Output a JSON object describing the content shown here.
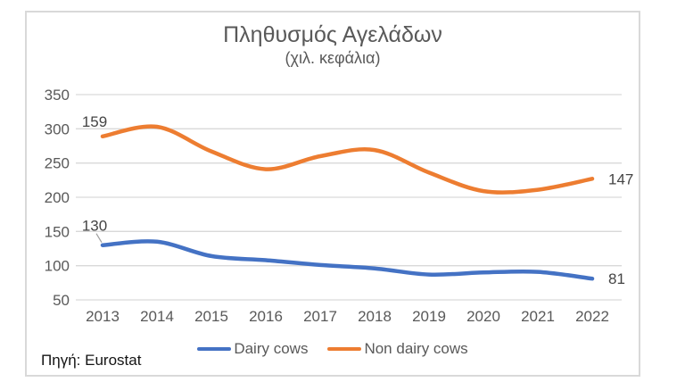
{
  "chart": {
    "title": "Πληθυσμός Αγελάδων",
    "subtitle": "(χιλ. κεφάλια)",
    "source": "Πηγή: Eurostat"
  },
  "chart_data": {
    "type": "line",
    "title": "Πληθυσμός Αγελάδων",
    "subtitle": "(χιλ. κεφάλια)",
    "categories": [
      "2013",
      "2014",
      "2015",
      "2016",
      "2017",
      "2018",
      "2019",
      "2020",
      "2021",
      "2022"
    ],
    "series": [
      {
        "name": "Dairy cows",
        "color": "#4472C4",
        "values": [
          130,
          135,
          114,
          108,
          101,
          96,
          87,
          90,
          91,
          81
        ],
        "first_label": "130",
        "last_label": "81",
        "first_label_leader": true
      },
      {
        "name": "Non dairy cows",
        "color": "#ED7D31",
        "values": [
          289,
          303,
          267,
          241,
          260,
          269,
          236,
          209,
          211,
          227
        ],
        "first_label": "159",
        "last_label": "147",
        "first_label_leader": false
      }
    ],
    "ylim": [
      50,
      350
    ],
    "yticks": [
      350,
      300,
      250,
      200,
      150,
      100,
      50
    ],
    "xlabel": "",
    "ylabel": "",
    "grid": "horizontal",
    "legend_position": "bottom",
    "line_style": "smooth"
  },
  "colors": {
    "grid": "#d9d9d9",
    "frame_border": "#d9d9d9",
    "axis_text": "#595959",
    "data_label_text": "#444444",
    "leader_line": "#9e9e9e"
  }
}
